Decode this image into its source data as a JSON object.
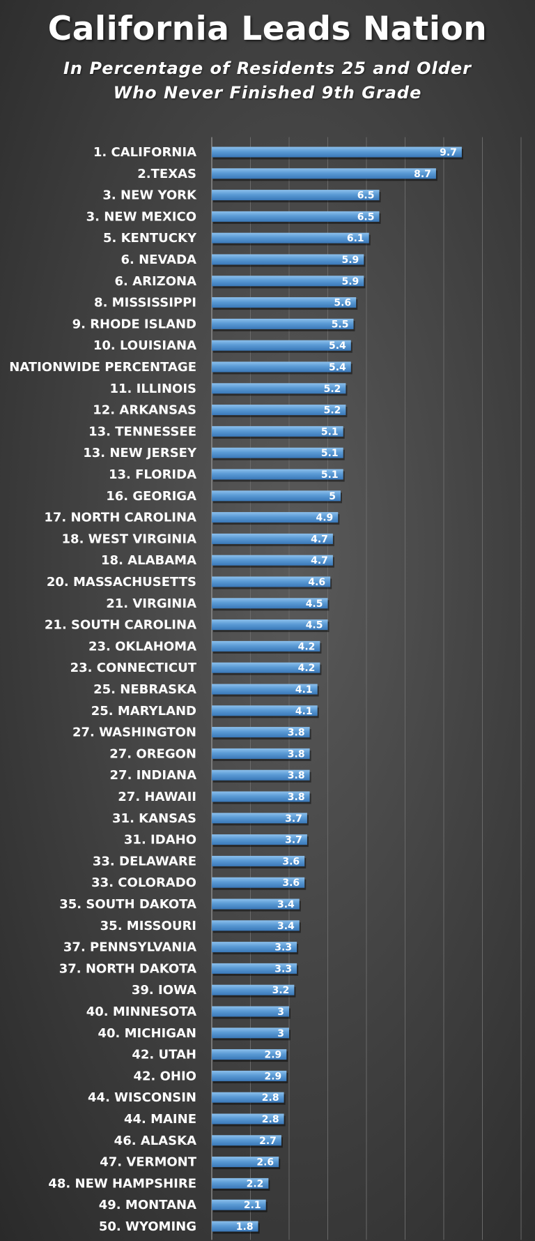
{
  "chart_data": {
    "type": "bar",
    "orientation": "horizontal",
    "title": "California Leads Nation",
    "subtitle_line1": "In Percentage of Residents 25 and Older",
    "subtitle_line2": "Who Never Finished 9th Grade",
    "xlim": [
      0,
      12
    ],
    "grid": true,
    "bar_color": "#5b9bd5",
    "categories": [
      "1. CALIFORNIA",
      "2.TEXAS",
      "3. NEW YORK",
      "3. NEW MEXICO",
      "5. KENTUCKY",
      "6. NEVADA",
      "6. ARIZONA",
      "8. MISSISSIPPI",
      "9. RHODE ISLAND",
      "10. LOUISIANA",
      "NATIONWIDE PERCENTAGE",
      "11. ILLINOIS",
      "12. ARKANSAS",
      "13. TENNESSEE",
      "13. NEW JERSEY",
      "13. FLORIDA",
      "16. GEORIGA",
      "17. NORTH CAROLINA",
      "18. WEST VIRGINIA",
      "18. ALABAMA",
      "20. MASSACHUSETTS",
      "21. VIRGINIA",
      "21. SOUTH CAROLINA",
      "23. OKLAHOMA",
      "23. CONNECTICUT",
      "25. NEBRASKA",
      "25. MARYLAND",
      "27. WASHINGTON",
      "27. OREGON",
      "27. INDIANA",
      "27. HAWAII",
      "31. KANSAS",
      "31. IDAHO",
      "33. DELAWARE",
      "33. COLORADO",
      "35. SOUTH DAKOTA",
      "35. MISSOURI",
      "37. PENNSYLVANIA",
      "37. NORTH DAKOTA",
      "39. IOWA",
      "40. MINNESOTA",
      "40. MICHIGAN",
      "42. UTAH",
      "42. OHIO",
      "44. WISCONSIN",
      "44. MAINE",
      "46. ALASKA",
      "47. VERMONT",
      "48. NEW HAMPSHIRE",
      "49. MONTANA",
      "50. WYOMING"
    ],
    "values": [
      9.7,
      8.7,
      6.5,
      6.5,
      6.1,
      5.9,
      5.9,
      5.6,
      5.5,
      5.4,
      5.4,
      5.2,
      5.2,
      5.1,
      5.1,
      5.1,
      5,
      4.9,
      4.7,
      4.7,
      4.6,
      4.5,
      4.5,
      4.2,
      4.2,
      4.1,
      4.1,
      3.8,
      3.8,
      3.8,
      3.8,
      3.7,
      3.7,
      3.6,
      3.6,
      3.4,
      3.4,
      3.3,
      3.3,
      3.2,
      3,
      3,
      2.9,
      2.9,
      2.8,
      2.8,
      2.7,
      2.6,
      2.2,
      2.1,
      1.8
    ]
  }
}
